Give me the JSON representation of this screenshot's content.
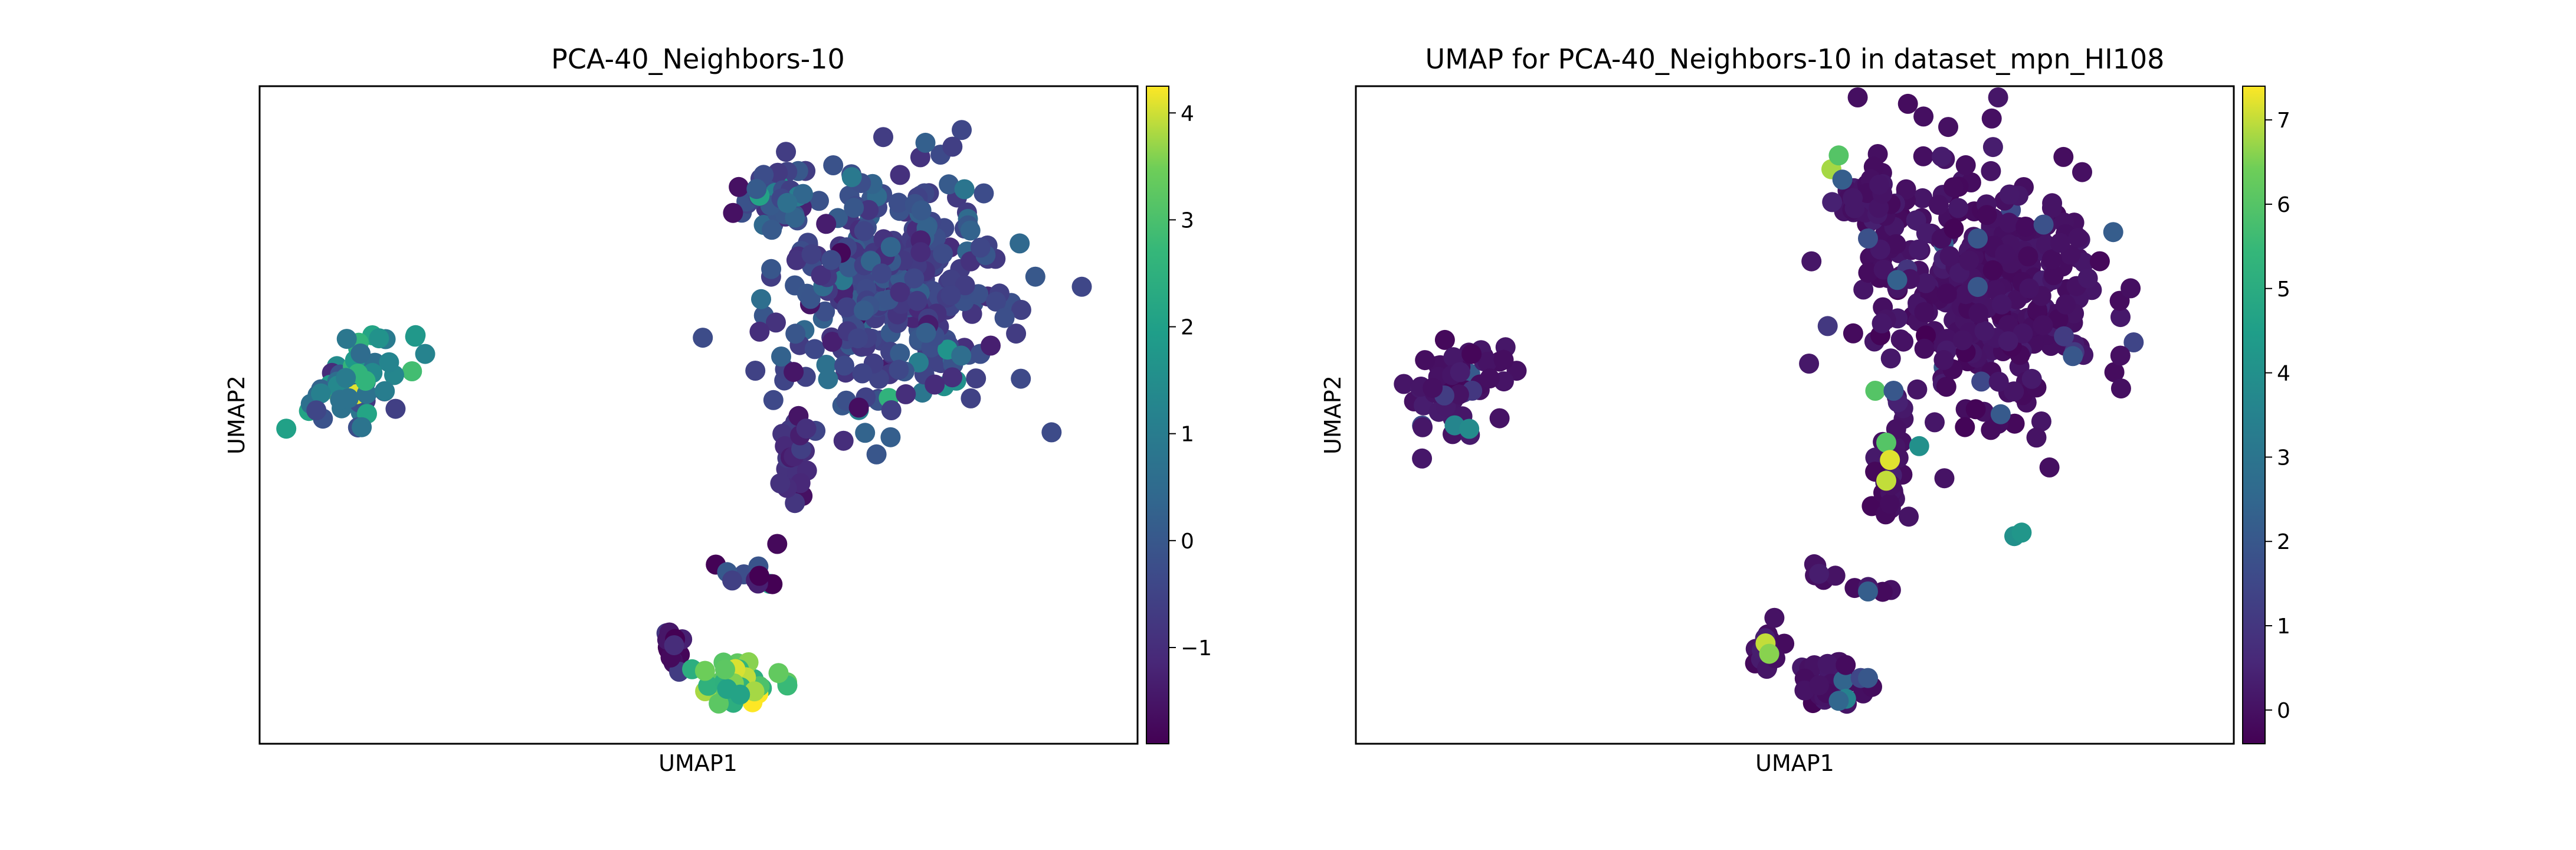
{
  "chart_data": [
    {
      "type": "scatter",
      "title": "PCA-40_Neighbors-10",
      "xlabel": "UMAP1",
      "ylabel": "UMAP2",
      "colormap": "viridis",
      "xticks_shown": false,
      "yticks_shown": false,
      "grid": false,
      "colorbar": {
        "range": [
          -1.9,
          4.25
        ],
        "ticks": [
          -1,
          0,
          1,
          2,
          3,
          4
        ],
        "tick_labels": [
          "−1",
          "0",
          "1",
          "2",
          "3",
          "4"
        ]
      },
      "clusters": [
        {
          "seed": 11,
          "n": 60,
          "cx": 1.35,
          "cy": 5.25,
          "sx": 0.55,
          "sy": 0.75,
          "rot": -38,
          "mean": 1.0,
          "spread": 0.9
        },
        {
          "seed": 12,
          "n": 360,
          "cx": 8.6,
          "cy": 6.6,
          "sx": 1.55,
          "sy": 1.7,
          "rot": 10,
          "mean": -0.5,
          "spread": 0.45
        },
        {
          "seed": 13,
          "n": 40,
          "cx": 7.0,
          "cy": 7.9,
          "sx": 0.4,
          "sy": 0.35,
          "rot": 0,
          "mean": -0.3,
          "spread": 0.6
        },
        {
          "seed": 14,
          "n": 30,
          "cx": 7.3,
          "cy": 4.0,
          "sx": 0.25,
          "sy": 0.9,
          "rot": 0,
          "mean": -0.9,
          "spread": 0.3
        },
        {
          "seed": 15,
          "n": 10,
          "cx": 6.7,
          "cy": 2.4,
          "sx": 0.55,
          "sy": 0.12,
          "rot": -20,
          "mean": -1.2,
          "spread": 0.6
        },
        {
          "seed": 16,
          "n": 14,
          "cx": 5.6,
          "cy": 1.3,
          "sx": 0.2,
          "sy": 0.3,
          "rot": 0,
          "mean": -1.4,
          "spread": 0.5
        },
        {
          "seed": 17,
          "n": 40,
          "cx": 6.5,
          "cy": 0.85,
          "sx": 0.5,
          "sy": 0.3,
          "rot": 0,
          "mean": 2.9,
          "spread": 0.7
        }
      ],
      "xlim": [
        0,
        12
      ],
      "ylim": [
        0,
        9.5
      ]
    },
    {
      "type": "scatter",
      "title": "UMAP for PCA-40_Neighbors-10 in dataset_mpn_HI108",
      "xlabel": "UMAP1",
      "ylabel": "UMAP2",
      "colormap": "viridis",
      "xticks_shown": false,
      "yticks_shown": false,
      "grid": false,
      "colorbar": {
        "range": [
          -0.4,
          7.4
        ],
        "ticks": [
          0,
          1,
          2,
          3,
          4,
          5,
          6,
          7
        ],
        "tick_labels": [
          "0",
          "1",
          "2",
          "3",
          "4",
          "5",
          "6",
          "7"
        ]
      },
      "clusters": [
        {
          "seed": 21,
          "n": 60,
          "cx": 1.35,
          "cy": 5.25,
          "sx": 0.55,
          "sy": 0.75,
          "rot": -38,
          "mean": 0.0,
          "spread": 0.15
        },
        {
          "seed": 22,
          "n": 360,
          "cx": 8.6,
          "cy": 6.6,
          "sx": 1.55,
          "sy": 1.7,
          "rot": 10,
          "mean": 0.0,
          "spread": 0.15
        },
        {
          "seed": 23,
          "n": 40,
          "cx": 7.0,
          "cy": 7.9,
          "sx": 0.4,
          "sy": 0.35,
          "rot": 0,
          "mean": 0.1,
          "spread": 0.2
        },
        {
          "seed": 24,
          "n": 30,
          "cx": 7.3,
          "cy": 4.0,
          "sx": 0.25,
          "sy": 0.9,
          "rot": 0,
          "mean": 0.0,
          "spread": 0.15
        },
        {
          "seed": 25,
          "n": 10,
          "cx": 6.7,
          "cy": 2.4,
          "sx": 0.55,
          "sy": 0.12,
          "rot": -20,
          "mean": 0.0,
          "spread": 0.15
        },
        {
          "seed": 26,
          "n": 14,
          "cx": 5.6,
          "cy": 1.3,
          "sx": 0.2,
          "sy": 0.3,
          "rot": 0,
          "mean": 0.0,
          "spread": 0.15
        },
        {
          "seed": 27,
          "n": 40,
          "cx": 6.5,
          "cy": 0.85,
          "sx": 0.5,
          "sy": 0.3,
          "rot": 0,
          "mean": 0.0,
          "spread": 0.15
        }
      ],
      "highlights": [
        {
          "x": 6.5,
          "y": 8.3,
          "value": 6.8
        },
        {
          "x": 6.6,
          "y": 8.5,
          "value": 6.0
        },
        {
          "x": 6.65,
          "y": 8.15,
          "value": 2.2
        },
        {
          "x": 7.1,
          "y": 5.1,
          "value": 6.0
        },
        {
          "x": 7.25,
          "y": 4.35,
          "value": 6.0
        },
        {
          "x": 7.3,
          "y": 4.1,
          "value": 7.2
        },
        {
          "x": 7.25,
          "y": 3.8,
          "value": 7.0
        },
        {
          "x": 5.6,
          "y": 1.45,
          "value": 7.0
        },
        {
          "x": 5.65,
          "y": 1.3,
          "value": 6.6
        },
        {
          "x": 7.7,
          "y": 4.3,
          "value": 4.0
        },
        {
          "x": 7.35,
          "y": 5.1,
          "value": 2.0
        },
        {
          "x": 9.0,
          "y": 3.0,
          "value": 4.0
        },
        {
          "x": 9.1,
          "y": 3.05,
          "value": 4.2
        },
        {
          "x": 1.35,
          "y": 4.6,
          "value": 3.6
        },
        {
          "x": 1.55,
          "y": 4.55,
          "value": 3.8
        },
        {
          "x": 6.7,
          "y": 0.65,
          "value": 3.5
        },
        {
          "x": 6.6,
          "y": 0.62,
          "value": 2.5
        },
        {
          "x": 6.9,
          "y": 0.95,
          "value": 1.5
        },
        {
          "x": 7.0,
          "y": 0.95,
          "value": 2.0
        },
        {
          "x": 7.0,
          "y": 2.2,
          "value": 2.2
        },
        {
          "x": 9.8,
          "y": 5.6,
          "value": 2.0
        },
        {
          "x": 8.5,
          "y": 7.3,
          "value": 2.0
        },
        {
          "x": 7.0,
          "y": 7.3,
          "value": 1.8
        },
        {
          "x": 7.4,
          "y": 6.7,
          "value": 2.3
        },
        {
          "x": 8.5,
          "y": 6.6,
          "value": 2.0
        },
        {
          "x": 9.4,
          "y": 7.5,
          "value": 1.8
        }
      ],
      "xlim": [
        0,
        12
      ],
      "ylim": [
        0,
        9.5
      ]
    }
  ]
}
